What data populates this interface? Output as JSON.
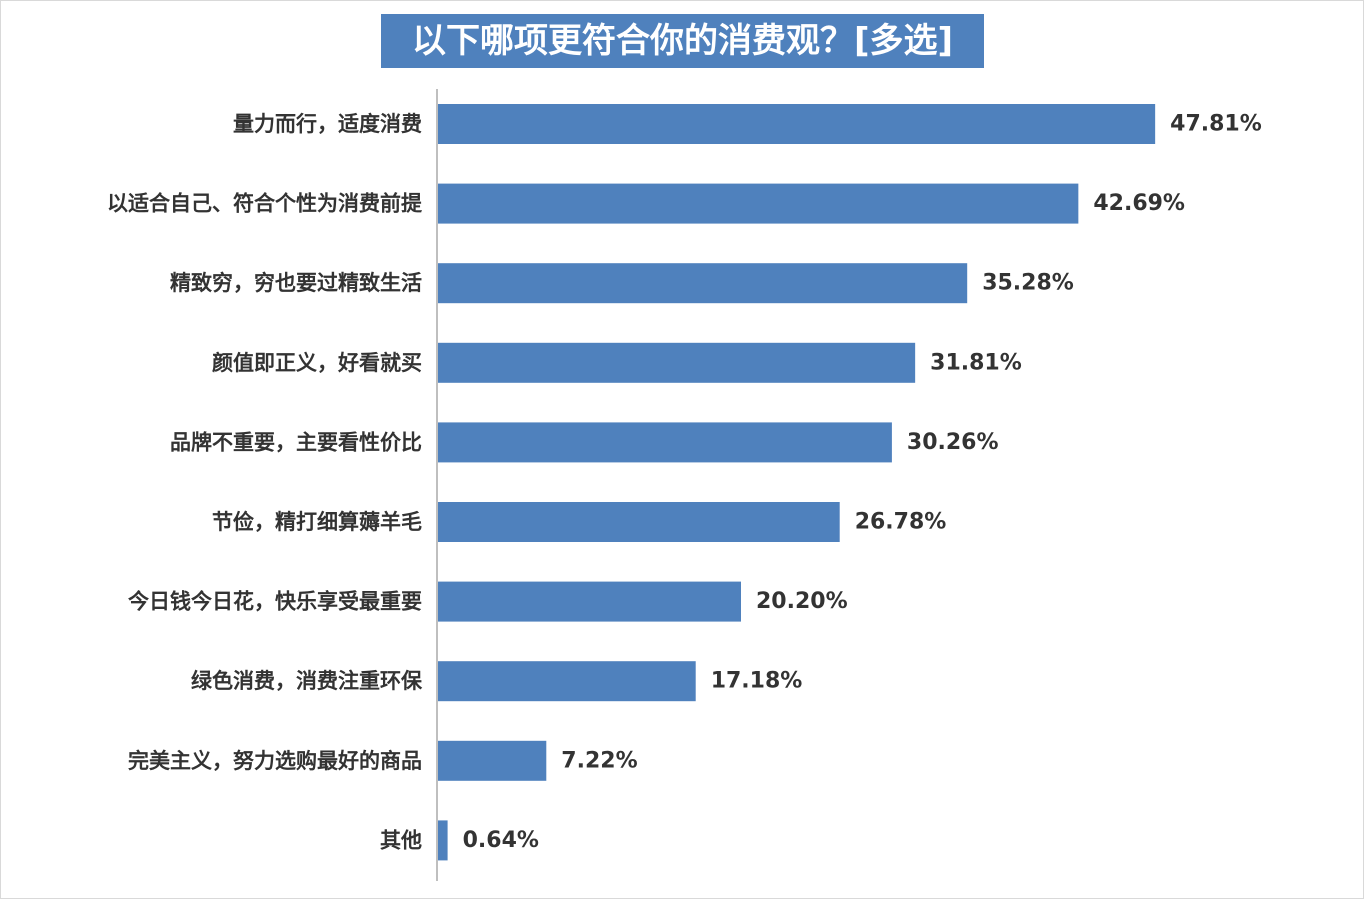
{
  "chart_data": {
    "type": "bar",
    "orientation": "horizontal",
    "title": "以下哪项更符合你的消费观？[多选]",
    "categories": [
      "量力而行，适度消费",
      "以适合自己、符合个性为消费前提",
      "精致穷，穷也要过精致生活",
      "颜值即正义，好看就买",
      "品牌不重要，主要看性价比",
      "节俭，精打细算薅羊毛",
      "今日钱今日花，快乐享受最重要",
      "绿色消费，消费注重环保",
      "完美主义，努力选购最好的商品",
      "其他"
    ],
    "values": [
      47.81,
      42.69,
      35.28,
      31.81,
      30.26,
      26.78,
      20.2,
      17.18,
      7.22,
      0.64
    ],
    "value_labels": [
      "47.81%",
      "42.69%",
      "35.28%",
      "31.81%",
      "30.26%",
      "26.78%",
      "20.20%",
      "17.18%",
      "7.22%",
      "0.64%"
    ],
    "bar_color": "#4f81bd",
    "title_bg": "#4f81bd",
    "grid": false
  }
}
